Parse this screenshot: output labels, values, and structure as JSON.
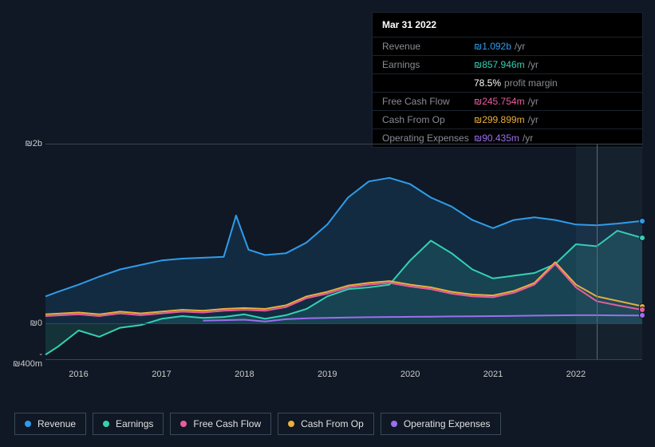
{
  "tooltip": {
    "date": "Mar 31 2022",
    "rows": [
      {
        "label": "Revenue",
        "value": "₪1.092b",
        "suffix": "/yr",
        "color": "#2f9ceb"
      },
      {
        "label": "Earnings",
        "value": "₪857.946m",
        "suffix": "/yr",
        "color": "#34d1b3"
      },
      {
        "label": "",
        "value": "78.5%",
        "suffix": "profit margin",
        "color": "#ffffff"
      },
      {
        "label": "Free Cash Flow",
        "value": "₪245.754m",
        "suffix": "/yr",
        "color": "#e85d9e"
      },
      {
        "label": "Cash From Op",
        "value": "₪299.899m",
        "suffix": "/yr",
        "color": "#eab13a"
      },
      {
        "label": "Operating Expenses",
        "value": "₪90.435m",
        "suffix": "/yr",
        "color": "#9d6ef0"
      }
    ]
  },
  "chart": {
    "type": "area",
    "background_color": "#0f1824",
    "grid_color": "#384450",
    "x": {
      "min": 2015.6,
      "max": 2022.8,
      "ticks": [
        2016,
        2017,
        2018,
        2019,
        2020,
        2021,
        2022
      ]
    },
    "y": {
      "min": -400,
      "max": 2000,
      "ticks": [
        {
          "v": 2000,
          "label": "₪2b"
        },
        {
          "v": 0,
          "label": "₪0"
        },
        {
          "v": -400,
          "label": "-₪400m"
        }
      ]
    },
    "future_from": 2022.0,
    "hover_x": 2022.25,
    "series": [
      {
        "key": "revenue",
        "name": "Revenue",
        "color": "#2f9ceb",
        "fill_opacity": 0.15,
        "line_width": 2,
        "points": [
          [
            2015.6,
            300
          ],
          [
            2015.75,
            350
          ],
          [
            2016.0,
            430
          ],
          [
            2016.25,
            520
          ],
          [
            2016.5,
            600
          ],
          [
            2016.75,
            650
          ],
          [
            2017.0,
            700
          ],
          [
            2017.25,
            720
          ],
          [
            2017.5,
            730
          ],
          [
            2017.75,
            740
          ],
          [
            2017.9,
            1200
          ],
          [
            2018.05,
            820
          ],
          [
            2018.25,
            760
          ],
          [
            2018.5,
            780
          ],
          [
            2018.75,
            900
          ],
          [
            2019.0,
            1100
          ],
          [
            2019.25,
            1400
          ],
          [
            2019.5,
            1580
          ],
          [
            2019.75,
            1620
          ],
          [
            2020.0,
            1550
          ],
          [
            2020.25,
            1400
          ],
          [
            2020.5,
            1300
          ],
          [
            2020.75,
            1150
          ],
          [
            2021.0,
            1060
          ],
          [
            2021.25,
            1150
          ],
          [
            2021.5,
            1180
          ],
          [
            2021.75,
            1150
          ],
          [
            2022.0,
            1100
          ],
          [
            2022.25,
            1092
          ],
          [
            2022.5,
            1110
          ],
          [
            2022.8,
            1140
          ]
        ]
      },
      {
        "key": "earnings",
        "name": "Earnings",
        "color": "#34d1b3",
        "fill_opacity": 0.15,
        "line_width": 2,
        "points": [
          [
            2015.6,
            -350
          ],
          [
            2015.75,
            -260
          ],
          [
            2016.0,
            -80
          ],
          [
            2016.25,
            -150
          ],
          [
            2016.5,
            -50
          ],
          [
            2016.75,
            -20
          ],
          [
            2017.0,
            50
          ],
          [
            2017.25,
            80
          ],
          [
            2017.5,
            60
          ],
          [
            2017.75,
            70
          ],
          [
            2018.0,
            100
          ],
          [
            2018.25,
            50
          ],
          [
            2018.5,
            90
          ],
          [
            2018.75,
            160
          ],
          [
            2019.0,
            300
          ],
          [
            2019.25,
            380
          ],
          [
            2019.5,
            400
          ],
          [
            2019.75,
            430
          ],
          [
            2020.0,
            700
          ],
          [
            2020.25,
            920
          ],
          [
            2020.5,
            780
          ],
          [
            2020.75,
            600
          ],
          [
            2021.0,
            500
          ],
          [
            2021.25,
            530
          ],
          [
            2021.5,
            560
          ],
          [
            2021.75,
            660
          ],
          [
            2022.0,
            880
          ],
          [
            2022.25,
            858
          ],
          [
            2022.5,
            1030
          ],
          [
            2022.8,
            950
          ]
        ]
      },
      {
        "key": "cash_from_op",
        "name": "Cash From Op",
        "color": "#eab13a",
        "fill_opacity": 0.0,
        "line_width": 2,
        "points": [
          [
            2015.6,
            100
          ],
          [
            2016.0,
            120
          ],
          [
            2016.25,
            100
          ],
          [
            2016.5,
            130
          ],
          [
            2016.75,
            110
          ],
          [
            2017.0,
            130
          ],
          [
            2017.25,
            150
          ],
          [
            2017.5,
            140
          ],
          [
            2017.75,
            160
          ],
          [
            2018.0,
            170
          ],
          [
            2018.25,
            160
          ],
          [
            2018.5,
            200
          ],
          [
            2018.75,
            300
          ],
          [
            2019.0,
            350
          ],
          [
            2019.25,
            420
          ],
          [
            2019.5,
            450
          ],
          [
            2019.75,
            470
          ],
          [
            2020.0,
            430
          ],
          [
            2020.25,
            400
          ],
          [
            2020.5,
            350
          ],
          [
            2020.75,
            320
          ],
          [
            2021.0,
            310
          ],
          [
            2021.25,
            360
          ],
          [
            2021.5,
            450
          ],
          [
            2021.75,
            680
          ],
          [
            2022.0,
            430
          ],
          [
            2022.25,
            300
          ],
          [
            2022.5,
            250
          ],
          [
            2022.8,
            190
          ]
        ]
      },
      {
        "key": "free_cash_flow",
        "name": "Free Cash Flow",
        "color": "#e85d9e",
        "fill_opacity": 0.0,
        "line_width": 2,
        "points": [
          [
            2015.6,
            80
          ],
          [
            2016.0,
            100
          ],
          [
            2016.25,
            80
          ],
          [
            2016.5,
            110
          ],
          [
            2016.75,
            90
          ],
          [
            2017.0,
            110
          ],
          [
            2017.25,
            130
          ],
          [
            2017.5,
            120
          ],
          [
            2017.75,
            140
          ],
          [
            2018.0,
            150
          ],
          [
            2018.25,
            140
          ],
          [
            2018.5,
            180
          ],
          [
            2018.75,
            280
          ],
          [
            2019.0,
            330
          ],
          [
            2019.25,
            400
          ],
          [
            2019.5,
            430
          ],
          [
            2019.75,
            450
          ],
          [
            2020.0,
            410
          ],
          [
            2020.25,
            380
          ],
          [
            2020.5,
            330
          ],
          [
            2020.75,
            300
          ],
          [
            2021.0,
            290
          ],
          [
            2021.25,
            340
          ],
          [
            2021.5,
            430
          ],
          [
            2021.75,
            660
          ],
          [
            2022.0,
            400
          ],
          [
            2022.25,
            246
          ],
          [
            2022.5,
            200
          ],
          [
            2022.8,
            150
          ]
        ]
      },
      {
        "key": "operating_expenses",
        "name": "Operating Expenses",
        "color": "#9d6ef0",
        "fill_opacity": 0.0,
        "line_width": 2,
        "points": [
          [
            2017.5,
            30
          ],
          [
            2017.75,
            35
          ],
          [
            2018.0,
            40
          ],
          [
            2018.25,
            20
          ],
          [
            2018.5,
            45
          ],
          [
            2018.75,
            55
          ],
          [
            2019.0,
            60
          ],
          [
            2019.25,
            65
          ],
          [
            2019.5,
            68
          ],
          [
            2019.75,
            70
          ],
          [
            2020.0,
            72
          ],
          [
            2020.25,
            74
          ],
          [
            2020.5,
            76
          ],
          [
            2020.75,
            78
          ],
          [
            2021.0,
            80
          ],
          [
            2021.25,
            82
          ],
          [
            2021.5,
            85
          ],
          [
            2021.75,
            88
          ],
          [
            2022.0,
            90
          ],
          [
            2022.25,
            90
          ],
          [
            2022.5,
            88
          ],
          [
            2022.8,
            86
          ]
        ]
      }
    ],
    "legend": [
      {
        "label": "Revenue",
        "color": "#2f9ceb"
      },
      {
        "label": "Earnings",
        "color": "#34d1b3"
      },
      {
        "label": "Free Cash Flow",
        "color": "#e85d9e"
      },
      {
        "label": "Cash From Op",
        "color": "#eab13a"
      },
      {
        "label": "Operating Expenses",
        "color": "#9d6ef0"
      }
    ]
  }
}
